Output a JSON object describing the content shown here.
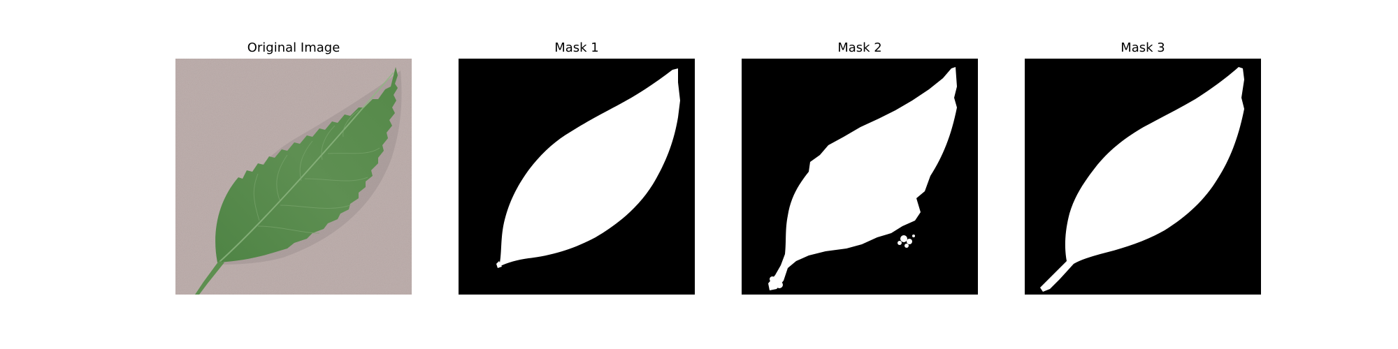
{
  "figure": {
    "panels": [
      {
        "title": "Original Image",
        "kind": "photo"
      },
      {
        "title": "Mask 1",
        "kind": "mask"
      },
      {
        "title": "Mask 2",
        "kind": "mask"
      },
      {
        "title": "Mask 3",
        "kind": "mask"
      }
    ]
  },
  "colors": {
    "background": "#ffffff",
    "mask_background": "#000000",
    "mask_foreground": "#ffffff",
    "leaf_green": "#5a8a4e",
    "leaf_dark": "#3f6e37",
    "table_surface": "#b9aaa8"
  }
}
